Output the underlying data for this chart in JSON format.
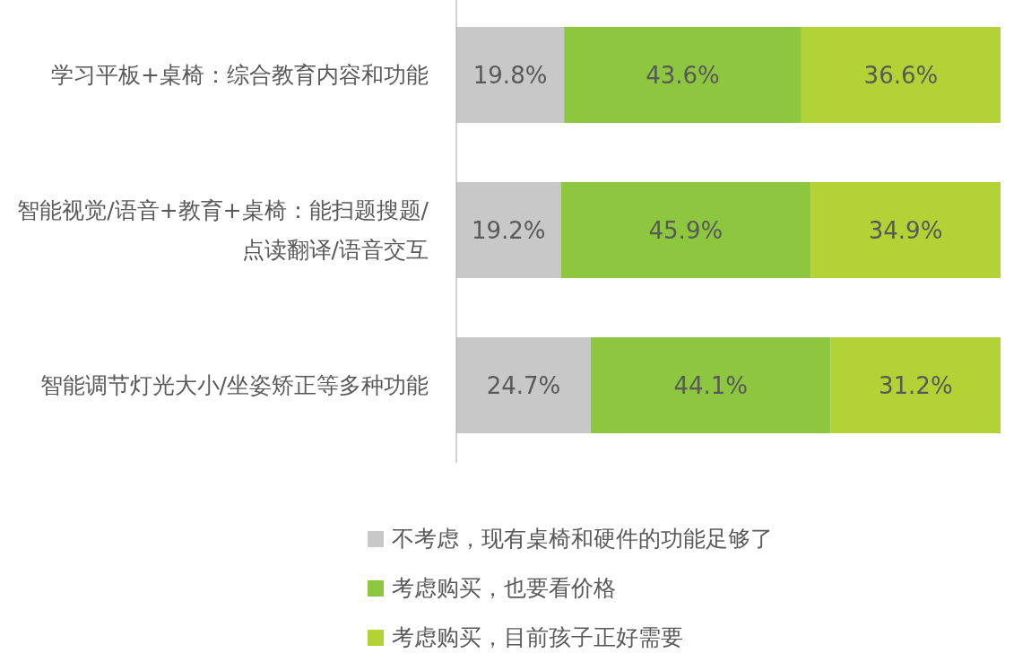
{
  "chart_data": {
    "type": "bar",
    "orientation": "horizontal",
    "stacked": true,
    "legend": "bottom",
    "categories": [
      "学习平板+桌椅：综合教育内容和功能",
      "智能视觉/语音+教育+桌椅：能扫题搜题/点读翻译/语音交互",
      "智能调节灯光大小/坐姿矫正等多种功能"
    ],
    "series": [
      {
        "name": "不考虑，现有桌椅和硬件的功能足够了",
        "color": "#c8c8c8",
        "values": [
          19.8,
          19.2,
          24.7
        ],
        "value_labels": [
          "19.8%",
          "19.2%",
          "24.7%"
        ]
      },
      {
        "name": "考虑购买，也要看价格",
        "color": "#8dc63f",
        "values": [
          43.6,
          45.9,
          44.1
        ],
        "value_labels": [
          "43.6%",
          "45.9%",
          "44.1%"
        ]
      },
      {
        "name": "考虑购买，目前孩子正好需要",
        "color": "#b2d235",
        "values": [
          36.6,
          34.9,
          31.2
        ],
        "value_labels": [
          "36.6%",
          "34.9%",
          "31.2%"
        ]
      }
    ]
  }
}
